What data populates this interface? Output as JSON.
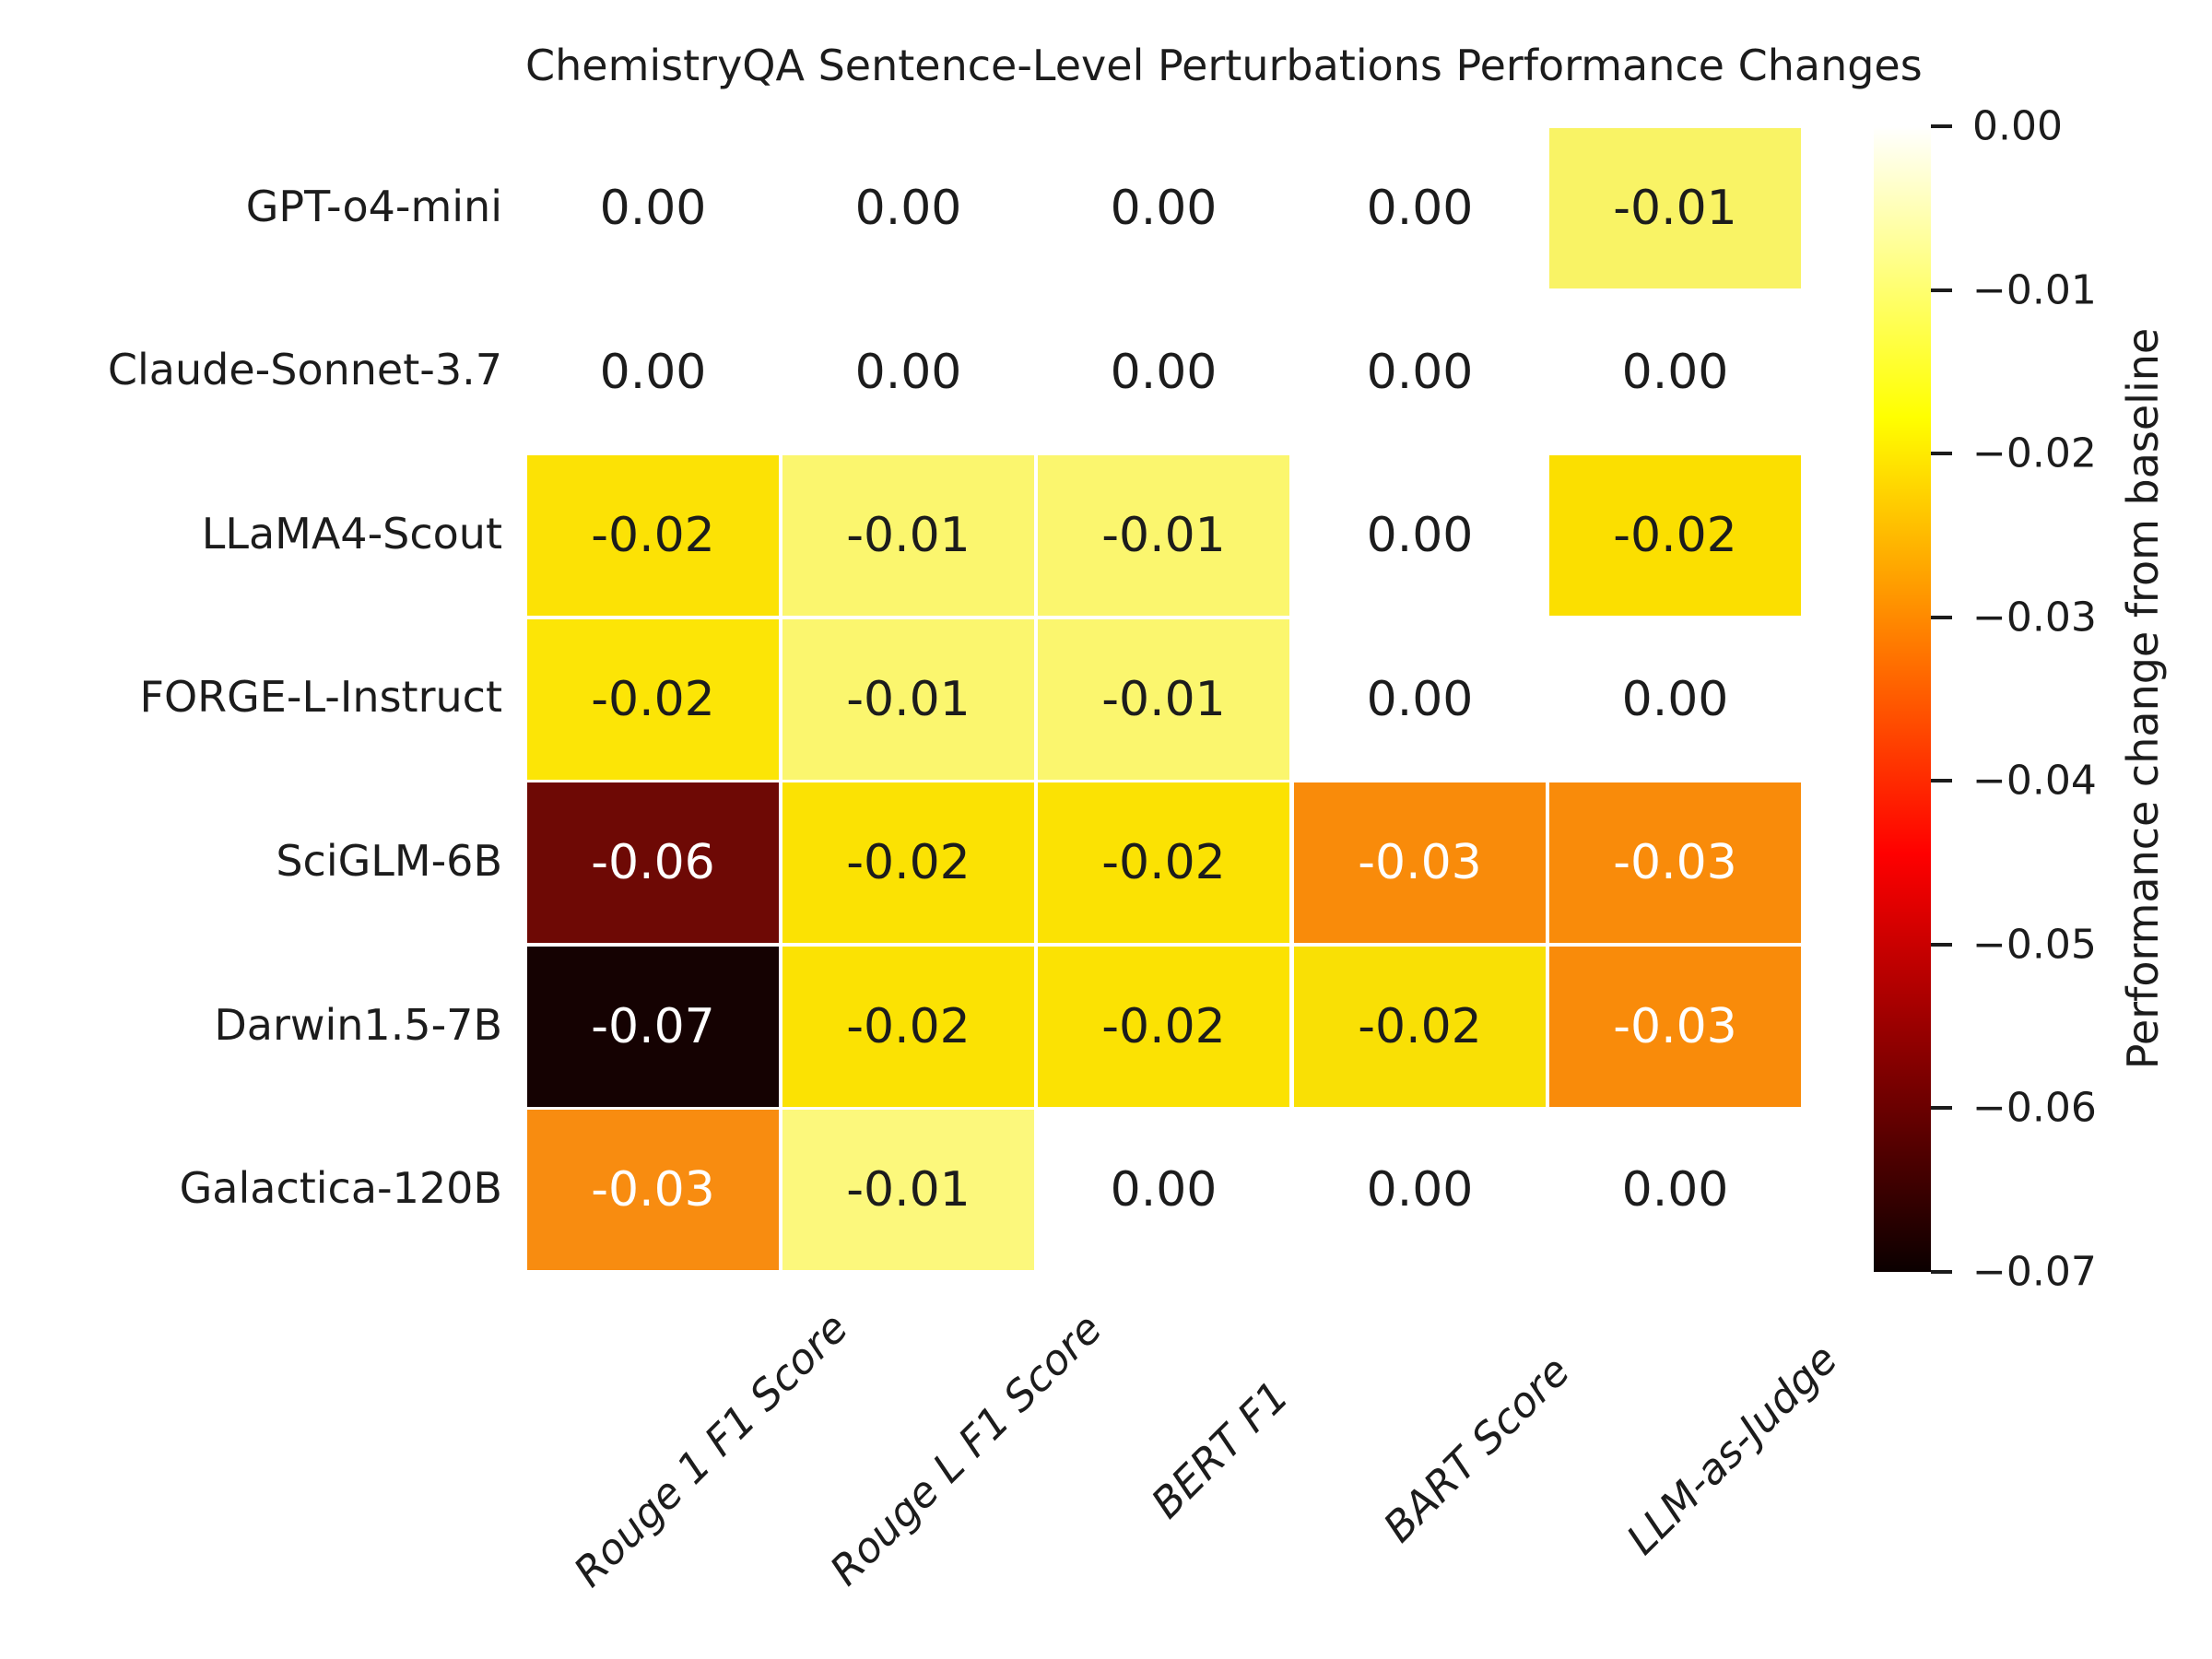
{
  "chart_data": {
    "type": "heatmap",
    "title": "ChemistryQA Sentence-Level Perturbations Performance Changes",
    "rows": [
      "GPT-o4-mini",
      "Claude-Sonnet-3.7",
      "LLaMA4-Scout",
      "FORGE-L-Instruct",
      "SciGLM-6B",
      "Darwin1.5-7B",
      "Galactica-120B"
    ],
    "columns": [
      "Rouge 1 F1 Score",
      "Rouge L F1 Score",
      "BERT F1",
      "BART Score",
      "LLM-as-Judge"
    ],
    "values": [
      [
        0.0,
        0.0,
        0.0,
        0.0,
        -0.01
      ],
      [
        0.0,
        0.0,
        0.0,
        0.0,
        0.0
      ],
      [
        -0.02,
        -0.01,
        -0.01,
        0.0,
        -0.02
      ],
      [
        -0.02,
        -0.01,
        -0.01,
        0.0,
        0.0
      ],
      [
        -0.06,
        -0.02,
        -0.02,
        -0.03,
        -0.03
      ],
      [
        -0.07,
        -0.02,
        -0.02,
        -0.02,
        -0.03
      ],
      [
        -0.03,
        -0.01,
        0.0,
        0.0,
        0.0
      ]
    ],
    "labels": [
      [
        "0.00",
        "0.00",
        "0.00",
        "0.00",
        "-0.01"
      ],
      [
        "0.00",
        "0.00",
        "0.00",
        "0.00",
        "0.00"
      ],
      [
        "-0.02",
        "-0.01",
        "-0.01",
        "0.00",
        "-0.02"
      ],
      [
        "-0.02",
        "-0.01",
        "-0.01",
        "0.00",
        "0.00"
      ],
      [
        "-0.06",
        "-0.02",
        "-0.02",
        "-0.03",
        "-0.03"
      ],
      [
        "-0.07",
        "-0.02",
        "-0.02",
        "-0.02",
        "-0.03"
      ],
      [
        "-0.03",
        "-0.01",
        "0.00",
        "0.00",
        "0.00"
      ]
    ],
    "cell_colors": [
      [
        "#ffffff",
        "#ffffff",
        "#ffffff",
        "#ffffff",
        "#f9f365"
      ],
      [
        "#ffffff",
        "#ffffff",
        "#ffffff",
        "#ffffff",
        "#ffffff"
      ],
      [
        "#fce205",
        "#fbf66e",
        "#fbf66e",
        "#ffffff",
        "#fbdf00"
      ],
      [
        "#fce506",
        "#fbf66e",
        "#fbf66e",
        "#ffffff",
        "#ffffff"
      ],
      [
        "#6e0905",
        "#fbe203",
        "#fbe203",
        "#f98b0a",
        "#f98b0a"
      ],
      [
        "#150202",
        "#fbe203",
        "#fbe203",
        "#f9e005",
        "#f98b0a"
      ],
      [
        "#f88c10",
        "#fcf87c",
        "#ffffff",
        "#ffffff",
        "#ffffff"
      ]
    ],
    "text_colors": [
      [
        "#1c1c1c",
        "#1c1c1c",
        "#1c1c1c",
        "#1c1c1c",
        "#1c1c1c"
      ],
      [
        "#1c1c1c",
        "#1c1c1c",
        "#1c1c1c",
        "#1c1c1c",
        "#1c1c1c"
      ],
      [
        "#1c1c1c",
        "#1c1c1c",
        "#1c1c1c",
        "#1c1c1c",
        "#1c1c1c"
      ],
      [
        "#1c1c1c",
        "#1c1c1c",
        "#1c1c1c",
        "#1c1c1c",
        "#1c1c1c"
      ],
      [
        "#ffffff",
        "#1c1c1c",
        "#1c1c1c",
        "#ffffff",
        "#ffffff"
      ],
      [
        "#ffffff",
        "#1c1c1c",
        "#1c1c1c",
        "#1c1c1c",
        "#ffffff"
      ],
      [
        "#ffffff",
        "#1c1c1c",
        "#1c1c1c",
        "#1c1c1c",
        "#1c1c1c"
      ]
    ],
    "xlabel": "",
    "ylabel": "",
    "grid": false,
    "colorbar": {
      "label": "Performance change from baseline",
      "vmin": -0.07,
      "vmax": 0.0,
      "ticks": [
        "0.00",
        "−0.01",
        "−0.02",
        "−0.03",
        "−0.04",
        "−0.05",
        "−0.06",
        "−0.07"
      ],
      "gradient": [
        {
          "pos": 0.0,
          "color": "#ffffff"
        },
        {
          "pos": 0.254,
          "color": "#ffff00"
        },
        {
          "pos": 0.635,
          "color": "#ff0000"
        },
        {
          "pos": 1.0,
          "color": "#0b0000"
        }
      ]
    }
  }
}
